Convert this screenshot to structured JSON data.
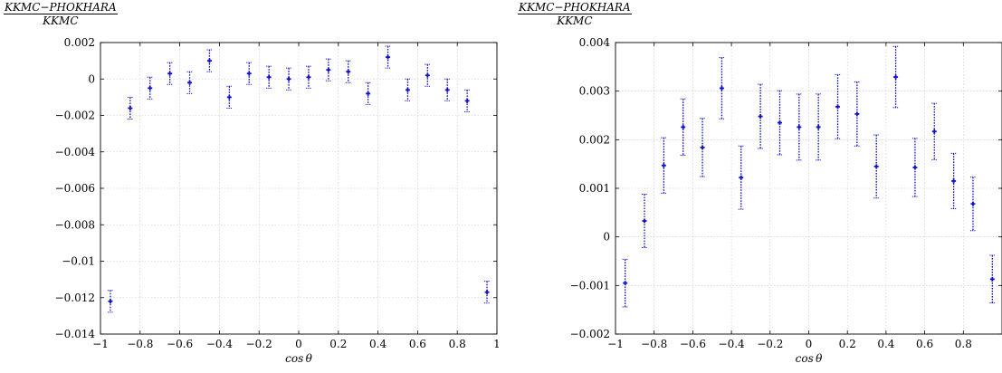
{
  "chart_data": [
    {
      "type": "scatter",
      "ylabel_numerator": "KKMC−PHOKHARA",
      "ylabel_denominator": "KKMC",
      "xlabel": "cos θ",
      "xlim": [
        -1,
        1
      ],
      "ylim": [
        -0.014,
        0.002
      ],
      "grid": true,
      "xticks": [
        -1,
        -0.8,
        -0.6,
        -0.4,
        -0.2,
        0,
        0.2,
        0.4,
        0.6,
        0.8,
        1
      ],
      "xtick_labels": [
        "−1",
        "−0.8",
        "−0.6",
        "−0.4",
        "−0.2",
        "0",
        "0.2",
        "0.4",
        "0.6",
        "0.8",
        "1"
      ],
      "yticks": [
        -0.014,
        -0.012,
        -0.01,
        -0.008,
        -0.006,
        -0.004,
        -0.002,
        0,
        0.002
      ],
      "ytick_labels": [
        "−0.014",
        "−0.012",
        "−0.01",
        "−0.008",
        "−0.006",
        "−0.004",
        "−0.002",
        "0",
        "0.002"
      ],
      "color": "#1010c8",
      "x": [
        -0.95,
        -0.85,
        -0.75,
        -0.65,
        -0.55,
        -0.45,
        -0.35,
        -0.25,
        -0.15,
        -0.05,
        0.05,
        0.15,
        0.25,
        0.35,
        0.45,
        0.55,
        0.65,
        0.75,
        0.85,
        0.95
      ],
      "y": [
        -0.0122,
        -0.0016,
        -0.0005,
        0.0003,
        -0.0002,
        0.001,
        -0.001,
        0.0003,
        0.0001,
        0.0,
        0.0001,
        0.0005,
        0.0004,
        -0.0008,
        0.0012,
        -0.0006,
        0.0002,
        -0.0006,
        -0.0012,
        -0.0117
      ],
      "err": [
        0.0006,
        0.0006,
        0.0006,
        0.0006,
        0.0006,
        0.0006,
        0.0006,
        0.0006,
        0.0006,
        0.0006,
        0.0006,
        0.0006,
        0.0006,
        0.0006,
        0.0006,
        0.0006,
        0.0006,
        0.0006,
        0.0006,
        0.0006
      ]
    },
    {
      "type": "scatter",
      "ylabel_numerator": "KKMC−PHOKHARA",
      "ylabel_denominator": "KKMC",
      "xlabel": "cos θ",
      "xlim": [
        -1,
        1
      ],
      "ylim": [
        -0.002,
        0.004
      ],
      "grid": true,
      "xticks": [
        -1,
        -0.8,
        -0.6,
        -0.4,
        -0.2,
        0,
        0.2,
        0.4,
        0.6,
        0.8
      ],
      "xtick_labels": [
        "−1",
        "−0.8",
        "−0.6",
        "−0.4",
        "−0.2",
        "0",
        "0.2",
        "0.4",
        "0.6",
        "0.8"
      ],
      "yticks": [
        -0.002,
        -0.001,
        0,
        0.001,
        0.002,
        0.003,
        0.004
      ],
      "ytick_labels": [
        "−0.002",
        "−0.001",
        "0",
        "0.001",
        "0.002",
        "0.003",
        "0.004"
      ],
      "color": "#1010c8",
      "x": [
        -0.95,
        -0.85,
        -0.75,
        -0.65,
        -0.55,
        -0.45,
        -0.35,
        -0.25,
        -0.15,
        -0.05,
        0.05,
        0.15,
        0.25,
        0.35,
        0.45,
        0.55,
        0.65,
        0.75,
        0.85,
        0.95
      ],
      "y": [
        -0.00095,
        0.00033,
        0.00147,
        0.00226,
        0.00184,
        0.00306,
        0.00122,
        0.00248,
        0.00235,
        0.00226,
        0.00226,
        0.00268,
        0.00253,
        0.00145,
        0.00329,
        0.00143,
        0.00217,
        0.00115,
        0.00068,
        -0.00087
      ],
      "err": [
        0.00049,
        0.00055,
        0.00057,
        0.00058,
        0.0006,
        0.00063,
        0.00065,
        0.00066,
        0.00066,
        0.00068,
        0.00068,
        0.00066,
        0.00066,
        0.00065,
        0.00063,
        0.0006,
        0.00058,
        0.00057,
        0.00055,
        0.00049
      ]
    }
  ]
}
